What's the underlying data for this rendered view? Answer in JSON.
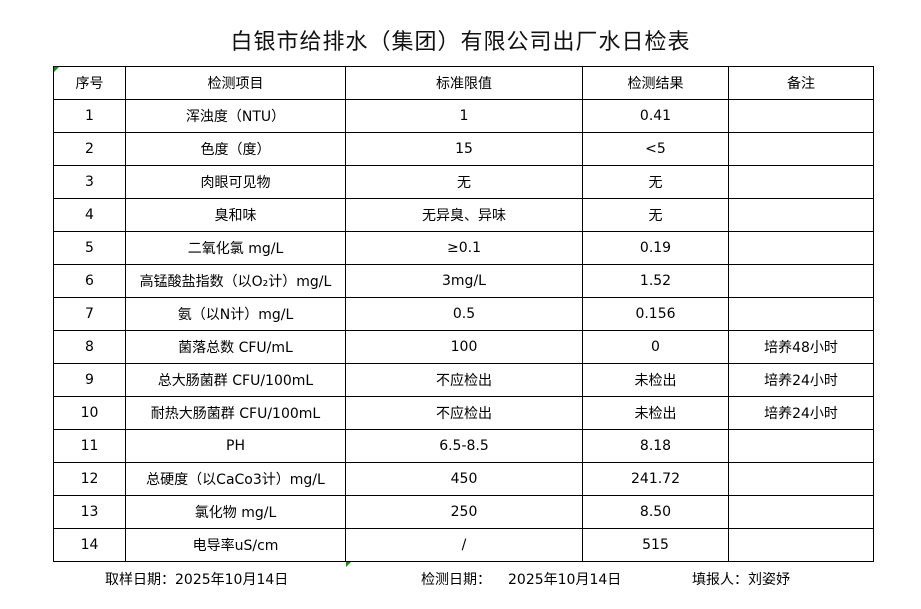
{
  "title": "白银市给排水（集团）有限公司出厂水日检表",
  "table": {
    "headers": [
      "序号",
      "检测项目",
      "标准限值",
      "检测结果",
      "备注"
    ],
    "rows": [
      [
        "1",
        "浑浊度（NTU）",
        "1",
        "0.41",
        ""
      ],
      [
        "2",
        "色度（度）",
        "15",
        "<5",
        ""
      ],
      [
        "3",
        "肉眼可见物",
        "无",
        "无",
        ""
      ],
      [
        "4",
        "臭和味",
        "无异臭、异味",
        "无",
        ""
      ],
      [
        "5",
        "二氧化氯 mg/L",
        "≥0.1",
        "0.19",
        ""
      ],
      [
        "6",
        "高锰酸盐指数（以O₂计）mg/L",
        "3mg/L",
        "1.52",
        ""
      ],
      [
        "7",
        "氨（以N计）mg/L",
        "0.5",
        "0.156",
        ""
      ],
      [
        "8",
        "菌落总数 CFU/mL",
        "100",
        "0",
        "培养48小时"
      ],
      [
        "9",
        "总大肠菌群 CFU/100mL",
        "不应检出",
        "未检出",
        "培养24小时"
      ],
      [
        "10",
        "耐热大肠菌群 CFU/100mL",
        "不应检出",
        "未检出",
        "培养24小时"
      ],
      [
        "11",
        "PH",
        "6.5-8.5",
        "8.18",
        ""
      ],
      [
        "12",
        "总硬度（以CaCo3计）mg/L",
        "450",
        "241.72",
        ""
      ],
      [
        "13",
        "氯化物 mg/L",
        "250",
        "8.50",
        ""
      ],
      [
        "14",
        "电导率uS/cm",
        "/",
        "515",
        ""
      ]
    ]
  },
  "footer": {
    "sampling_date": "取样日期：2025年10月14日",
    "test_date_label": "检测日期：",
    "test_date": "2025年10月14日",
    "reporter": "填报人：刘姿妤"
  },
  "colors": {
    "cell_marker": "#1a8a1a"
  }
}
